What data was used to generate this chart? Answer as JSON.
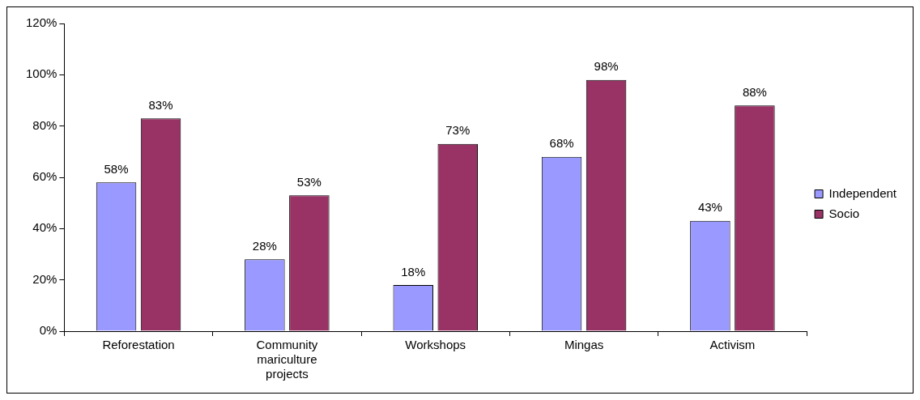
{
  "chart_data": {
    "type": "bar",
    "categories": [
      "Reforestation",
      "Community mariculture projects",
      "Workshops",
      "Mingas",
      "Activism"
    ],
    "series": [
      {
        "name": "Independent",
        "color": "#9999ff",
        "values": [
          58,
          28,
          18,
          68,
          43
        ],
        "value_labels": [
          "58%",
          "28%",
          "18%",
          "68%",
          "43%"
        ]
      },
      {
        "name": "Socio",
        "color": "#993366",
        "values": [
          83,
          53,
          73,
          98,
          88
        ],
        "value_labels": [
          "83%",
          "53%",
          "73%",
          "98%",
          "88%"
        ]
      }
    ],
    "ylim": [
      0,
      120
    ],
    "yticks": [
      {
        "value": 0,
        "label": "0%"
      },
      {
        "value": 20,
        "label": "20%"
      },
      {
        "value": 40,
        "label": "40%"
      },
      {
        "value": 60,
        "label": "60%"
      },
      {
        "value": 80,
        "label": "80%"
      },
      {
        "value": 100,
        "label": "100%"
      },
      {
        "value": 120,
        "label": "120%"
      }
    ],
    "grid": false,
    "legend": "right"
  }
}
